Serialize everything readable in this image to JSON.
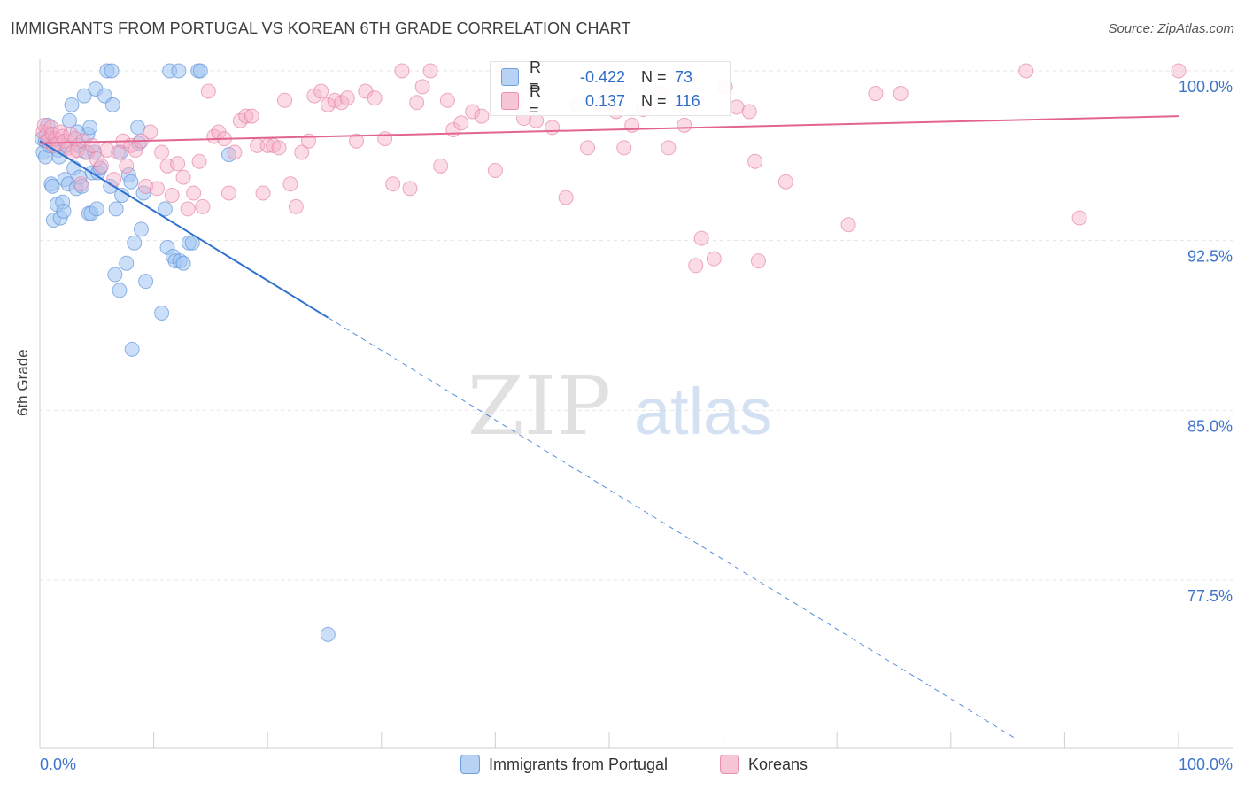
{
  "title": "IMMIGRANTS FROM PORTUGAL VS KOREAN 6TH GRADE CORRELATION CHART",
  "source": "Source: ZipAtlas.com",
  "watermark": {
    "zip": "ZIP",
    "atlas": "atlas"
  },
  "legend_top": {
    "r_label": "R =",
    "n_label": "N =",
    "rows": [
      {
        "r": "-0.422",
        "n": "73",
        "swatch_fill": "#b8d2f4",
        "swatch_stroke": "#6f9fdd"
      },
      {
        "r": "0.137",
        "n": "116",
        "swatch_fill": "#f7c6d6",
        "swatch_stroke": "#e88fb0"
      }
    ]
  },
  "legend_bottom": [
    {
      "label": "Immigrants from Portugal",
      "fill": "#b8d2f4",
      "stroke": "#6f9fdd"
    },
    {
      "label": "Koreans",
      "fill": "#f7c6d6",
      "stroke": "#e88fb0"
    }
  ],
  "chart_data": {
    "type": "scatter",
    "title": "IMMIGRANTS FROM PORTUGAL VS KOREAN 6TH GRADE CORRELATION CHART",
    "xlabel": "",
    "ylabel": "6th Grade",
    "xlim": [
      0,
      100
    ],
    "ylim": [
      70.0,
      101.2
    ],
    "x_tick_labels": [
      "0.0%",
      "100.0%"
    ],
    "y_ticks": [
      77.5,
      85.0,
      92.5,
      100.0
    ],
    "y_tick_labels": [
      "77.5%",
      "85.0%",
      "92.5%",
      "100.0%"
    ],
    "grid": true,
    "series": [
      {
        "name": "Immigrants from Portugal",
        "color": "#5b8fd9",
        "fill": "rgba(160,196,242,0.55)",
        "trend": {
          "x0": 0,
          "y0": 96.9,
          "x1": 25.3,
          "y1": 89.1,
          "dash_to_x": 85.7,
          "dash_to_y": 70.5,
          "color": "#2f72d1"
        },
        "points": [
          [
            0.2,
            97.0
          ],
          [
            0.3,
            96.4
          ],
          [
            0.5,
            96.9
          ],
          [
            0.5,
            96.2
          ],
          [
            0.7,
            97.6
          ],
          [
            0.8,
            96.7
          ],
          [
            1.0,
            95.0
          ],
          [
            1.1,
            94.9
          ],
          [
            1.2,
            93.4
          ],
          [
            1.5,
            94.1
          ],
          [
            1.6,
            96.5
          ],
          [
            1.7,
            96.2
          ],
          [
            1.8,
            93.5
          ],
          [
            2.0,
            94.2
          ],
          [
            2.1,
            93.8
          ],
          [
            2.2,
            95.2
          ],
          [
            2.3,
            96.7
          ],
          [
            2.5,
            95.0
          ],
          [
            2.6,
            97.8
          ],
          [
            2.8,
            98.5
          ],
          [
            3.0,
            95.7
          ],
          [
            3.2,
            94.8
          ],
          [
            3.3,
            97.3
          ],
          [
            3.4,
            96.7
          ],
          [
            3.5,
            95.3
          ],
          [
            3.7,
            94.9
          ],
          [
            3.9,
            98.9
          ],
          [
            4.0,
            96.4
          ],
          [
            4.2,
            97.2
          ],
          [
            4.3,
            93.7
          ],
          [
            4.4,
            97.5
          ],
          [
            4.5,
            93.7
          ],
          [
            4.6,
            95.5
          ],
          [
            4.8,
            96.4
          ],
          [
            4.9,
            99.2
          ],
          [
            5.0,
            93.9
          ],
          [
            5.1,
            95.5
          ],
          [
            5.3,
            95.7
          ],
          [
            5.7,
            98.9
          ],
          [
            5.9,
            100.0
          ],
          [
            6.2,
            94.9
          ],
          [
            6.3,
            100.0
          ],
          [
            6.4,
            98.5
          ],
          [
            6.6,
            91.0
          ],
          [
            6.7,
            93.9
          ],
          [
            7.0,
            90.3
          ],
          [
            7.1,
            96.4
          ],
          [
            7.2,
            94.5
          ],
          [
            7.6,
            91.5
          ],
          [
            7.8,
            95.4
          ],
          [
            8.0,
            95.1
          ],
          [
            8.1,
            87.7
          ],
          [
            8.3,
            92.4
          ],
          [
            8.6,
            97.5
          ],
          [
            8.7,
            96.8
          ],
          [
            8.9,
            93.0
          ],
          [
            9.1,
            94.6
          ],
          [
            9.3,
            90.7
          ],
          [
            10.7,
            89.3
          ],
          [
            11.0,
            93.9
          ],
          [
            11.2,
            92.2
          ],
          [
            11.4,
            100.0
          ],
          [
            11.7,
            91.8
          ],
          [
            11.9,
            91.6
          ],
          [
            12.2,
            100.0
          ],
          [
            12.3,
            91.6
          ],
          [
            12.6,
            91.5
          ],
          [
            13.1,
            92.4
          ],
          [
            13.4,
            92.4
          ],
          [
            13.9,
            100.0
          ],
          [
            14.1,
            100.0
          ],
          [
            16.6,
            96.3
          ],
          [
            25.3,
            75.1
          ]
        ]
      },
      {
        "name": "Koreans",
        "color": "#e57fa4",
        "fill": "rgba(244,176,200,0.45)",
        "trend": {
          "x0": 0,
          "y0": 96.8,
          "x1": 100,
          "y1": 98.0,
          "color": "#e2658f"
        },
        "points": [
          [
            0.3,
            97.3
          ],
          [
            0.4,
            97.6
          ],
          [
            0.6,
            97.2
          ],
          [
            0.7,
            96.9
          ],
          [
            0.9,
            97.0
          ],
          [
            1.0,
            97.5
          ],
          [
            1.1,
            97.2
          ],
          [
            1.2,
            96.7
          ],
          [
            1.4,
            97.0
          ],
          [
            1.6,
            96.8
          ],
          [
            1.8,
            97.3
          ],
          [
            2.0,
            97.1
          ],
          [
            2.2,
            96.9
          ],
          [
            2.5,
            96.6
          ],
          [
            2.7,
            97.2
          ],
          [
            2.9,
            96.4
          ],
          [
            3.1,
            97.0
          ],
          [
            3.3,
            96.5
          ],
          [
            3.6,
            95.0
          ],
          [
            3.8,
            96.9
          ],
          [
            4.2,
            96.4
          ],
          [
            4.6,
            96.7
          ],
          [
            5.0,
            96.1
          ],
          [
            5.4,
            95.8
          ],
          [
            5.9,
            96.5
          ],
          [
            6.5,
            95.2
          ],
          [
            6.9,
            96.4
          ],
          [
            7.3,
            96.9
          ],
          [
            7.6,
            95.8
          ],
          [
            8.0,
            96.7
          ],
          [
            8.4,
            96.5
          ],
          [
            8.9,
            96.9
          ],
          [
            9.3,
            94.9
          ],
          [
            9.7,
            97.3
          ],
          [
            10.3,
            94.8
          ],
          [
            10.7,
            96.4
          ],
          [
            11.2,
            95.8
          ],
          [
            11.6,
            94.5
          ],
          [
            12.1,
            95.9
          ],
          [
            12.6,
            95.3
          ],
          [
            13.0,
            93.9
          ],
          [
            13.5,
            94.6
          ],
          [
            14.0,
            96.0
          ],
          [
            14.3,
            94.0
          ],
          [
            14.8,
            99.1
          ],
          [
            15.3,
            97.1
          ],
          [
            15.7,
            97.3
          ],
          [
            16.2,
            97.0
          ],
          [
            16.6,
            94.6
          ],
          [
            17.1,
            96.4
          ],
          [
            17.6,
            97.8
          ],
          [
            18.1,
            98.0
          ],
          [
            18.6,
            98.0
          ],
          [
            19.1,
            96.7
          ],
          [
            19.6,
            94.6
          ],
          [
            20.0,
            96.7
          ],
          [
            20.5,
            96.7
          ],
          [
            21.0,
            96.6
          ],
          [
            21.5,
            98.7
          ],
          [
            22.0,
            95.0
          ],
          [
            22.5,
            94.0
          ],
          [
            23.0,
            96.4
          ],
          [
            23.6,
            96.9
          ],
          [
            24.1,
            98.9
          ],
          [
            24.7,
            99.1
          ],
          [
            25.3,
            98.5
          ],
          [
            25.9,
            98.7
          ],
          [
            26.5,
            98.6
          ],
          [
            27.0,
            98.8
          ],
          [
            27.8,
            96.9
          ],
          [
            28.6,
            99.1
          ],
          [
            29.4,
            98.8
          ],
          [
            30.3,
            97.0
          ],
          [
            31.0,
            95.0
          ],
          [
            31.8,
            100.0
          ],
          [
            32.5,
            94.8
          ],
          [
            33.1,
            98.6
          ],
          [
            33.6,
            99.3
          ],
          [
            34.3,
            100.0
          ],
          [
            35.2,
            95.8
          ],
          [
            35.8,
            98.7
          ],
          [
            36.3,
            97.4
          ],
          [
            37.0,
            97.7
          ],
          [
            38.0,
            98.2
          ],
          [
            38.8,
            98.0
          ],
          [
            40.0,
            95.6
          ],
          [
            40.6,
            100.0
          ],
          [
            41.8,
            98.6
          ],
          [
            42.5,
            97.9
          ],
          [
            43.6,
            97.8
          ],
          [
            45.0,
            97.5
          ],
          [
            46.2,
            94.4
          ],
          [
            47.2,
            98.5
          ],
          [
            48.1,
            96.6
          ],
          [
            49.5,
            98.5
          ],
          [
            50.6,
            98.2
          ],
          [
            51.3,
            96.6
          ],
          [
            52.0,
            97.6
          ],
          [
            53.0,
            98.3
          ],
          [
            54.4,
            99.0
          ],
          [
            55.2,
            96.6
          ],
          [
            56.6,
            97.6
          ],
          [
            57.6,
            91.4
          ],
          [
            58.1,
            92.6
          ],
          [
            59.2,
            91.7
          ],
          [
            60.2,
            99.3
          ],
          [
            61.2,
            98.4
          ],
          [
            62.3,
            98.2
          ],
          [
            62.8,
            96.0
          ],
          [
            63.1,
            91.6
          ],
          [
            65.5,
            95.1
          ],
          [
            71.0,
            93.2
          ],
          [
            73.4,
            99.0
          ],
          [
            75.6,
            99.0
          ],
          [
            86.6,
            100.0
          ],
          [
            91.3,
            93.5
          ],
          [
            100.0,
            100.0
          ]
        ]
      }
    ]
  }
}
